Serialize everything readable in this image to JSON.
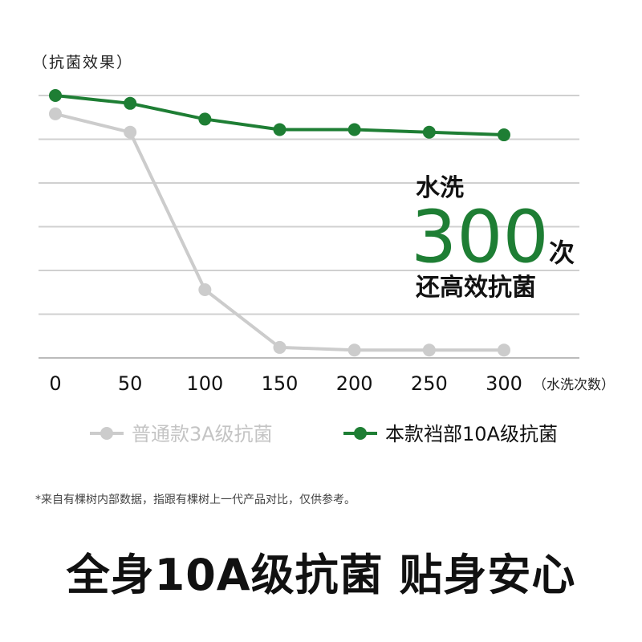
{
  "chart_data": {
    "type": "line",
    "ylabel": "（抗菌效果）",
    "xlabel": "（水洗次数）",
    "x": [
      0,
      50,
      100,
      150,
      200,
      250,
      300
    ],
    "xlim": [
      0,
      300
    ],
    "ylim": [
      0,
      100
    ],
    "grid": true,
    "legend_position": "bottom",
    "series": [
      {
        "name": "普通款3A级抗菌",
        "color": "#cccccc",
        "values": [
          93,
          86,
          26,
          4,
          3,
          3,
          3
        ]
      },
      {
        "name": "本款裆部10A级抗菌",
        "color": "#1e7e34",
        "values": [
          100,
          97,
          91,
          87,
          87,
          86,
          85
        ]
      }
    ],
    "annotation": {
      "line1": "水洗",
      "number": "300",
      "unit": "次",
      "line2": "还高效抗菌"
    }
  },
  "footnote": "*来自有棵树内部数据，指跟有棵树上一代产品对比，仅供参考。",
  "slogan": "全身10A级抗菌 贴身安心"
}
